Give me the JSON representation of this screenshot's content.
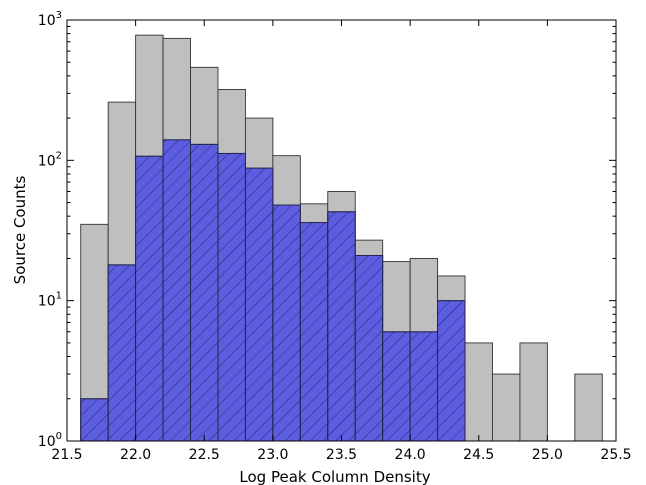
{
  "chart_data": {
    "type": "bar",
    "subtype": "overlaid-histogram",
    "title": "",
    "xlabel": "Log Peak Column Density",
    "ylabel": "Source Counts",
    "xlim": [
      21.5,
      25.5
    ],
    "ylim": [
      1,
      1000
    ],
    "yscale": "log",
    "grid": false,
    "legend": "none",
    "bin_width": 0.2,
    "bin_starts": [
      21.6,
      21.8,
      22.0,
      22.2,
      22.4,
      22.6,
      22.8,
      23.0,
      23.2,
      23.4,
      23.6,
      23.8,
      24.0,
      24.2,
      24.4,
      24.6,
      24.8,
      25.0,
      25.2
    ],
    "series": [
      {
        "color": "#bfbfbf",
        "hatch": false,
        "values": [
          35,
          260,
          780,
          740,
          460,
          320,
          200,
          108,
          49,
          60,
          27,
          19,
          20,
          15,
          5,
          3,
          5,
          1,
          3
        ]
      },
      {
        "color": "#5d5ddf",
        "hatch": true,
        "values": [
          2,
          18,
          107,
          140,
          130,
          112,
          88,
          48,
          36,
          43,
          21,
          6,
          6,
          10,
          1,
          1,
          1,
          1,
          1
        ]
      }
    ],
    "xticks": [
      "21.5",
      "22.0",
      "22.5",
      "23.0",
      "23.5",
      "24.0",
      "24.5",
      "25.0",
      "25.5"
    ],
    "xtick_values": [
      21.5,
      22.0,
      22.5,
      23.0,
      23.5,
      24.0,
      24.5,
      25.0,
      25.5
    ],
    "yticks": [
      {
        "base": "10",
        "exp": "0",
        "value": 1
      },
      {
        "base": "10",
        "exp": "1",
        "value": 10
      },
      {
        "base": "10",
        "exp": "2",
        "value": 100
      },
      {
        "base": "10",
        "exp": "3",
        "value": 1000
      }
    ]
  }
}
